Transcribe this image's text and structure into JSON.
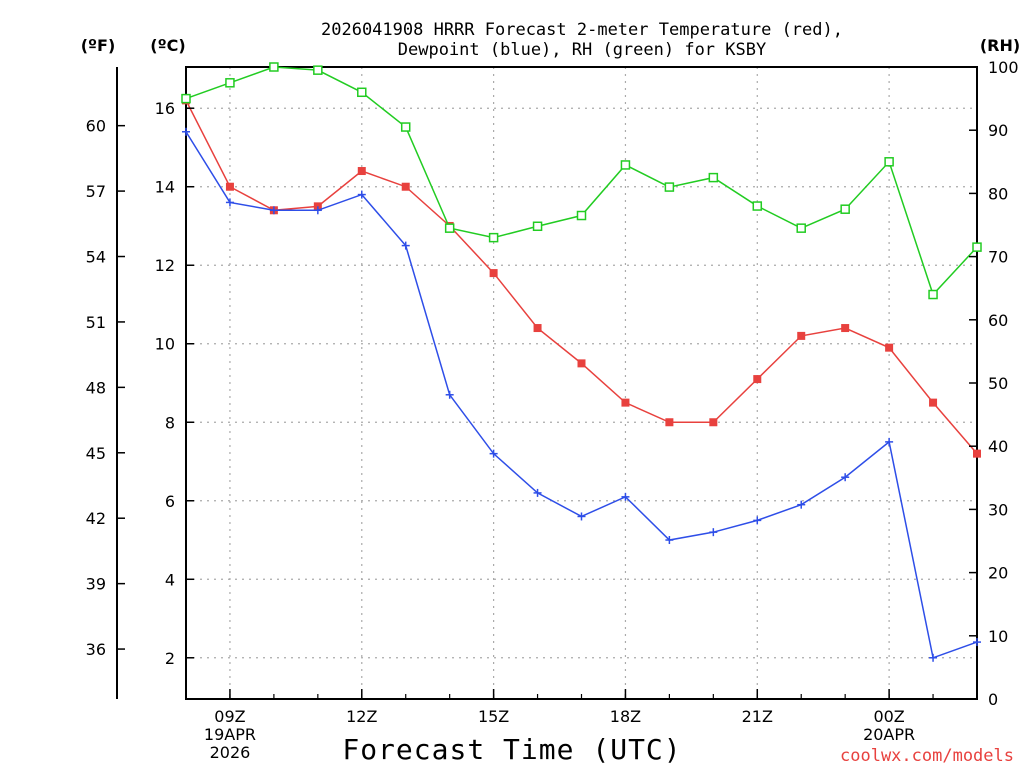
{
  "chart_data": {
    "type": "line",
    "title_lines": [
      "2026041908 HRRR Forecast 2-meter Temperature (red),",
      "Dewpoint (blue), RH (green) for KSBY"
    ],
    "xlabel": "Forecast Time (UTC)",
    "credit": "coolwx.com/models",
    "unit_labels": {
      "fahrenheit": "(ºF)",
      "celsius": "(ºC)",
      "rh": "(RH)"
    },
    "x_hours": [
      8,
      9,
      10,
      11,
      12,
      13,
      14,
      15,
      16,
      17,
      18,
      19,
      20,
      21,
      22,
      23,
      24,
      25,
      26
    ],
    "x_ticks": [
      {
        "hour": 9,
        "lines": [
          "09Z",
          "19APR",
          "2026"
        ]
      },
      {
        "hour": 12,
        "lines": [
          "12Z"
        ]
      },
      {
        "hour": 15,
        "lines": [
          "15Z"
        ]
      },
      {
        "hour": 18,
        "lines": [
          "18Z"
        ]
      },
      {
        "hour": 21,
        "lines": [
          "21Z"
        ]
      },
      {
        "hour": 24,
        "lines": [
          "00Z",
          "20APR"
        ]
      }
    ],
    "celsius_axis": {
      "range": [
        0.95,
        17.05
      ],
      "ticks": [
        "2",
        "4",
        "6",
        "8",
        "10",
        "12",
        "14",
        "16"
      ]
    },
    "fahrenheit_axis": {
      "ticks": [
        "36",
        "39",
        "42",
        "45",
        "48",
        "51",
        "54",
        "57",
        "60"
      ]
    },
    "rh_axis": {
      "range": [
        0,
        100
      ],
      "ticks": [
        "0",
        "10",
        "20",
        "30",
        "40",
        "50",
        "60",
        "70",
        "80",
        "90",
        "100"
      ]
    },
    "grid": true,
    "series": [
      {
        "name": "Temperature",
        "axis": "celsius",
        "color": "#e8413e",
        "marker": "filled-square",
        "values": [
          16.2,
          14.0,
          13.4,
          13.5,
          14.4,
          14.0,
          13.0,
          11.8,
          10.4,
          9.5,
          8.5,
          8.0,
          8.0,
          9.1,
          10.2,
          10.4,
          9.9,
          8.5,
          7.2
        ]
      },
      {
        "name": "Dewpoint",
        "axis": "celsius",
        "color": "#2e4ee8",
        "marker": "plus",
        "values": [
          15.4,
          13.6,
          13.4,
          13.4,
          13.8,
          12.5,
          8.7,
          7.2,
          6.2,
          5.6,
          6.1,
          5.0,
          5.2,
          5.5,
          5.9,
          6.6,
          7.5,
          2.0,
          2.4
        ]
      },
      {
        "name": "RH",
        "axis": "rh",
        "color": "#22cc22",
        "marker": "open-square",
        "values": [
          95.0,
          97.5,
          100.0,
          99.5,
          96.0,
          90.5,
          74.5,
          73.0,
          74.8,
          76.5,
          84.5,
          81.0,
          82.5,
          78.0,
          74.5,
          77.5,
          85.0,
          64.0,
          71.5
        ]
      }
    ]
  }
}
